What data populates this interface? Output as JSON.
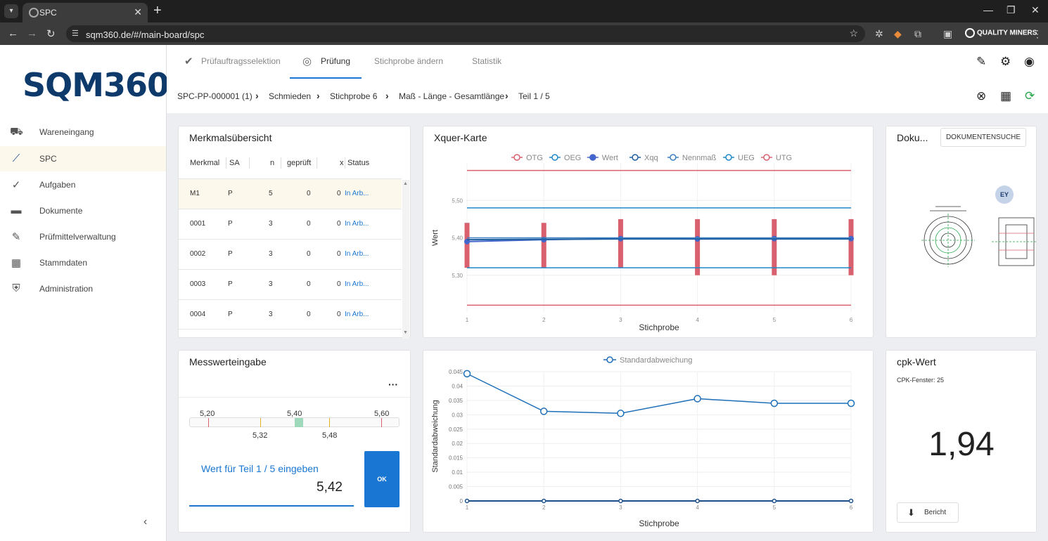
{
  "browser": {
    "tab_title": "SPC",
    "url": "sqm360.de/#/main-board/spc",
    "ext_brand": "QUALITY MINERS"
  },
  "sidebar": {
    "logo": "SQM360",
    "items": [
      {
        "label": "Wareneingang",
        "icon": "truck-icon"
      },
      {
        "label": "SPC",
        "icon": "trend-icon"
      },
      {
        "label": "Aufgaben",
        "icon": "check-circle-icon"
      },
      {
        "label": "Dokumente",
        "icon": "folder-icon"
      },
      {
        "label": "Prüfmittelverwaltung",
        "icon": "tool-icon"
      },
      {
        "label": "Stammdaten",
        "icon": "grid-icon"
      },
      {
        "label": "Administration",
        "icon": "shield-icon"
      }
    ]
  },
  "topbar": {
    "tabs": [
      {
        "label": "Prüfauftragsselektion"
      },
      {
        "label": "Prüfung"
      },
      {
        "label": "Stichprobe ändern"
      },
      {
        "label": "Statistik"
      }
    ]
  },
  "breadcrumb": {
    "items": [
      "SPC-PP-000001 (1)",
      "Schmieden",
      "Stichprobe  6",
      "Maß - Länge - Gesamtlänge",
      "Teil  1 / 5"
    ]
  },
  "merkmal": {
    "title": "Merkmalsübersicht",
    "columns": [
      "Merkmal",
      "SA",
      "n",
      "geprüft",
      "x",
      "Status"
    ],
    "rows": [
      [
        "M1",
        "P",
        "5",
        "0",
        "0",
        "In Arb..."
      ],
      [
        "0001",
        "P",
        "3",
        "0",
        "0",
        "In Arb..."
      ],
      [
        "0002",
        "P",
        "3",
        "0",
        "0",
        "In Arb..."
      ],
      [
        "0003",
        "P",
        "3",
        "0",
        "0",
        "In Arb..."
      ],
      [
        "0004",
        "P",
        "3",
        "0",
        "0",
        "In Arb..."
      ]
    ]
  },
  "xquer": {
    "title": "Xquer-Karte",
    "legend": [
      "OTG",
      "OEG",
      "Wert",
      "Xqq",
      "Nennmaß",
      "UEG",
      "UTG"
    ]
  },
  "doku": {
    "title": "Doku...",
    "search_button": "DOKUMENTENSUCHE",
    "avatar": "EY"
  },
  "messwert": {
    "title": "Messwerteingabe",
    "gauge_top": [
      "5,20",
      "5,40",
      "5,60"
    ],
    "gauge_bottom": [
      "5,32",
      "5,48"
    ],
    "input_label": "Wert für Teil 1 / 5 eingeben",
    "input_value": "5,42",
    "ok_label": "OK"
  },
  "cpk": {
    "title": "cpk-Wert",
    "subtitle": "CPK-Fenster: 25",
    "value": "1,94",
    "report_button": "Bericht"
  },
  "chart_data": [
    {
      "type": "line",
      "title": "Xquer-Karte",
      "xlabel": "Stichprobe",
      "ylabel": "Wert",
      "x": [
        1,
        2,
        3,
        4,
        5,
        6
      ],
      "yticks": [
        "5,30",
        "5,40",
        "5,50"
      ],
      "ylim": [
        5.2,
        5.6
      ],
      "legend_position": "top",
      "series": [
        {
          "name": "OTG",
          "values": [
            5.58,
            5.58,
            5.58,
            5.58,
            5.58,
            5.58
          ],
          "color": "#d9606e"
        },
        {
          "name": "OEG",
          "values": [
            5.48,
            5.48,
            5.48,
            5.48,
            5.48,
            5.48
          ],
          "color": "#1e88c8"
        },
        {
          "name": "Wert",
          "values": [
            5.39,
            5.395,
            5.398,
            5.397,
            5.398,
            5.398
          ],
          "color": "#4466cc"
        },
        {
          "name": "Xqq",
          "values": [
            5.395,
            5.396,
            5.397,
            5.397,
            5.397,
            5.397
          ],
          "color": "#1e5fa0"
        },
        {
          "name": "Nennmaß",
          "values": [
            5.4,
            5.4,
            5.4,
            5.4,
            5.4,
            5.4
          ],
          "color": "#3c7fc0"
        },
        {
          "name": "UEG",
          "values": [
            5.32,
            5.32,
            5.32,
            5.32,
            5.32,
            5.32
          ],
          "color": "#1e88c8"
        },
        {
          "name": "UTG",
          "values": [
            5.22,
            5.22,
            5.22,
            5.22,
            5.22,
            5.22
          ],
          "color": "#d9606e"
        }
      ],
      "range_bars": {
        "color": "#d9606e",
        "low": [
          5.32,
          5.32,
          5.32,
          5.3,
          5.3,
          5.3
        ],
        "high": [
          5.44,
          5.44,
          5.45,
          5.45,
          5.45,
          5.45
        ]
      }
    },
    {
      "type": "line",
      "title": "",
      "xlabel": "Stichprobe",
      "ylabel": "Standardabweichung",
      "x": [
        1,
        2,
        3,
        4,
        5,
        6
      ],
      "yticks": [
        "0",
        "0.005",
        "0.01",
        "0.015",
        "0.02",
        "0.025",
        "0.03",
        "0.035",
        "0.04",
        "0.045"
      ],
      "ylim": [
        0,
        0.045
      ],
      "legend_position": "top",
      "series": [
        {
          "name": "Standardabweichung",
          "values": [
            0.0443,
            0.0312,
            0.0305,
            0.0356,
            0.034,
            0.034
          ],
          "color": "#1e6fb8"
        },
        {
          "name": "",
          "values": [
            0,
            0,
            0,
            0,
            0,
            0
          ],
          "color": "#1a4f8a"
        }
      ]
    }
  ]
}
